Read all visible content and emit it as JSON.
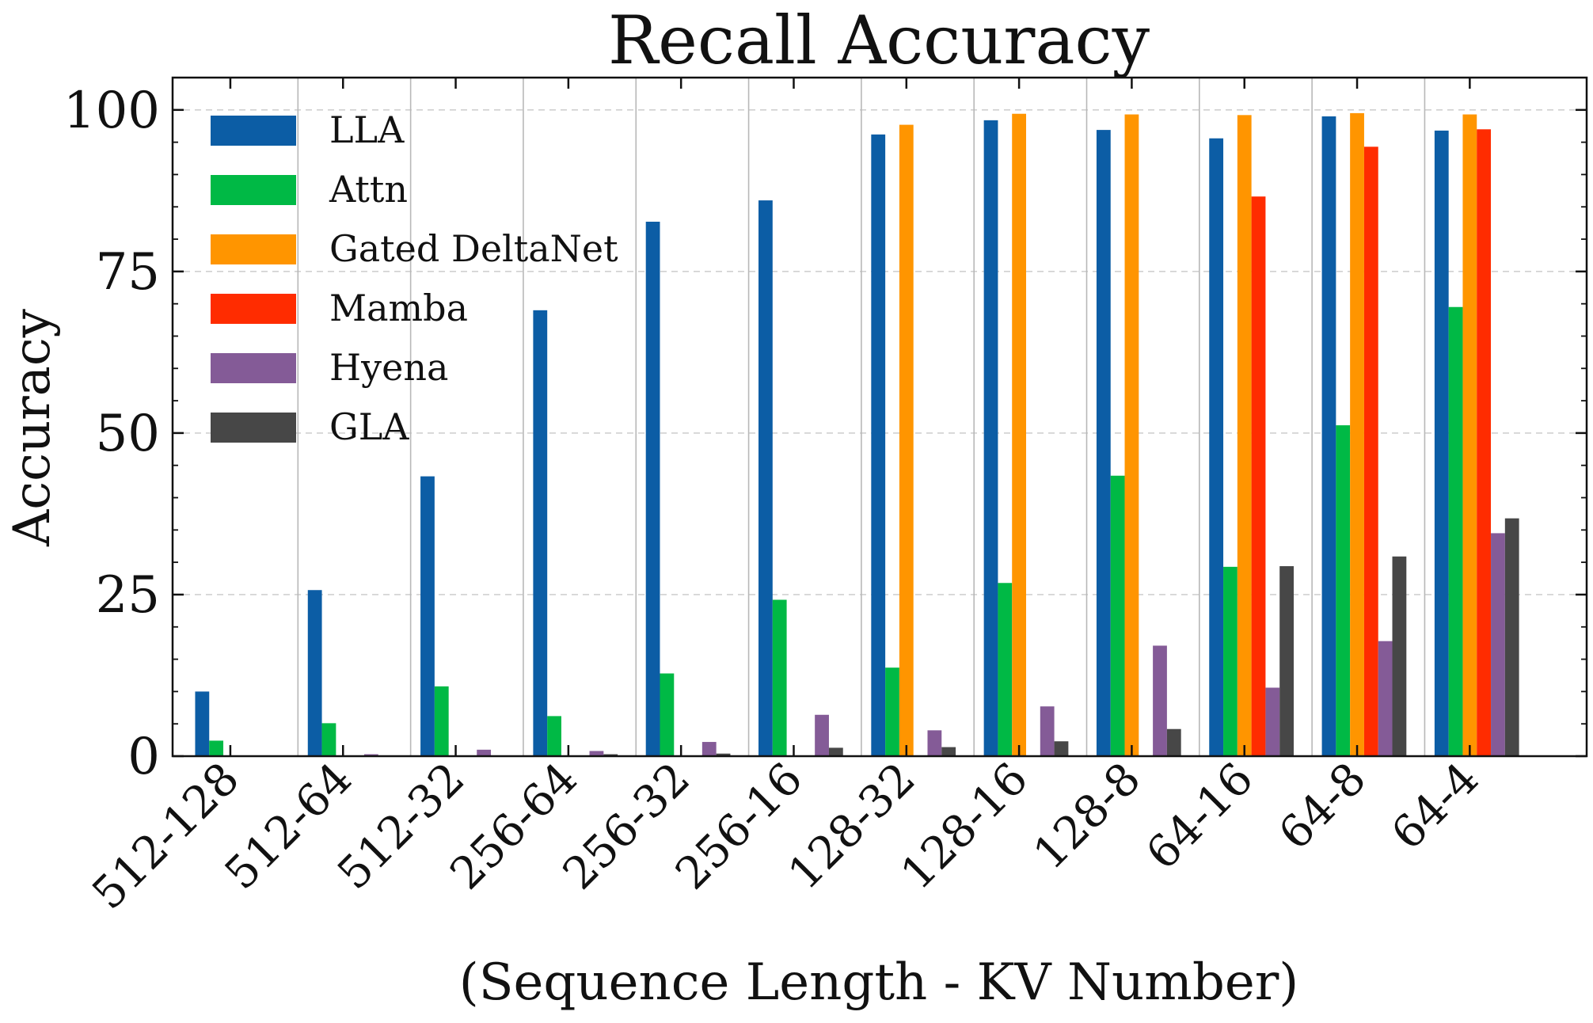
{
  "chart_data": {
    "type": "bar",
    "title": "Recall Accuracy",
    "xlabel": "(Sequence Length - KV Number)",
    "ylabel": "Accuracy",
    "ylim": [
      0,
      105
    ],
    "yticks": [
      0,
      25,
      50,
      75,
      100
    ],
    "grid": "dashed horizontal lines at y ticks; solid vertical separators between categories",
    "legend_position": "top-left",
    "categories": [
      "512-128",
      "512-64",
      "512-32",
      "256-64",
      "256-32",
      "256-16",
      "128-32",
      "128-16",
      "128-8",
      "64-16",
      "64-8",
      "64-4"
    ],
    "series": [
      {
        "name": "LLA",
        "color": "#0c5da5",
        "values": [
          10,
          25.7,
          43.3,
          69,
          82.7,
          86,
          96.2,
          98.4,
          96.9,
          95.6,
          99,
          96.8
        ]
      },
      {
        "name": "Attn",
        "color": "#00b945",
        "values": [
          2.4,
          5.1,
          10.8,
          6.2,
          12.8,
          24.2,
          13.7,
          26.8,
          43.4,
          29.3,
          51.2,
          69.5
        ]
      },
      {
        "name": "Gated DeltaNet",
        "color": "#ff9500",
        "values": [
          0,
          0,
          0,
          0,
          0,
          0,
          97.7,
          99.4,
          99.3,
          99.2,
          99.5,
          99.3
        ]
      },
      {
        "name": "Mamba",
        "color": "#ff2c00",
        "values": [
          0,
          0,
          0,
          0,
          0,
          0,
          0,
          0,
          0,
          86.6,
          94.3,
          97
        ]
      },
      {
        "name": "Hyena",
        "color": "#845b97",
        "values": [
          0.1,
          0.3,
          1,
          0.8,
          2.2,
          6.4,
          4,
          7.7,
          17.1,
          10.6,
          17.8,
          34.5
        ]
      },
      {
        "name": "GLA",
        "color": "#474747",
        "values": [
          0,
          0,
          0,
          0.3,
          0.4,
          1.3,
          1.4,
          2.3,
          4.2,
          29.4,
          30.9,
          36.8
        ]
      }
    ]
  }
}
